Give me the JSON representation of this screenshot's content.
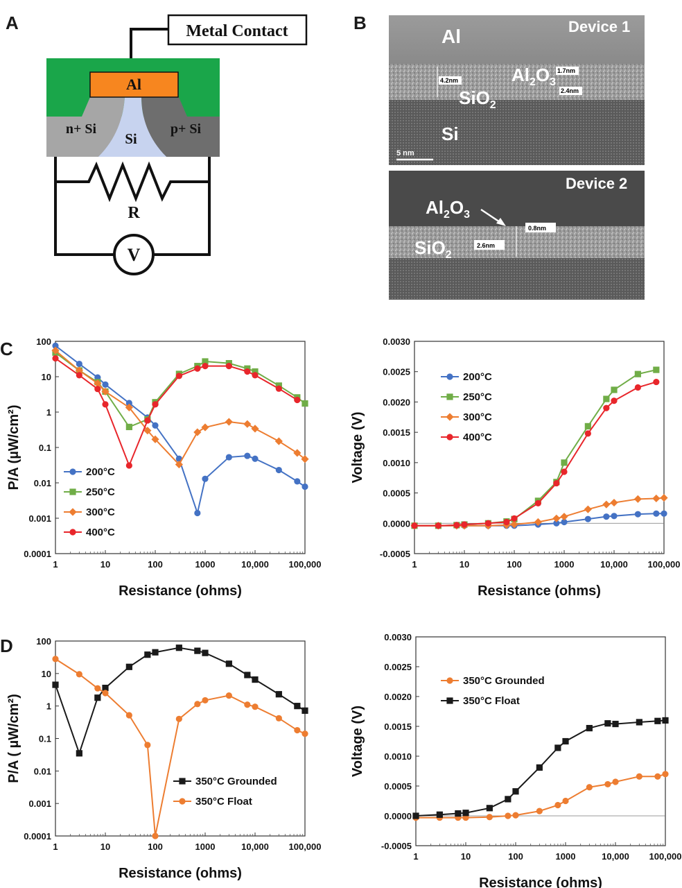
{
  "panels": {
    "a": "A",
    "b": "B",
    "c": "C",
    "d": "D"
  },
  "schematic": {
    "metal_contact": "Metal Contact",
    "al": "Al",
    "n_si": "n+ Si",
    "si": "Si",
    "p_si": "p+ Si",
    "r": "R",
    "v": "V",
    "colors": {
      "oxide": "#1aa64a",
      "al": "#f7861f",
      "n_si": "#a6a6a6",
      "p_si": "#6e6e6e",
      "si": "#c7d3ef"
    }
  },
  "tem": {
    "device1": {
      "title": "Device 1",
      "al": "Al",
      "al2o3": "Al",
      "al2o3_sub": "2",
      "al2o3_o": "O",
      "al2o3_osub": "3",
      "sio2": "SiO",
      "sio2_sub": "2",
      "si": "Si",
      "dim_42": "4.2nm",
      "dim_17": "1.7nm",
      "dim_24": "2.4nm",
      "scale": "5 nm"
    },
    "device2": {
      "title": "Device 2",
      "al2o3": "Al",
      "al2o3_sub": "2",
      "al2o3_o": "O",
      "al2o3_osub": "3",
      "sio2": "SiO",
      "sio2_sub": "2",
      "dim_08": "0.8nm",
      "dim_26": "2.6nm"
    }
  },
  "chart_data": [
    {
      "panel": "C-left",
      "type": "line",
      "xscale": "log",
      "yscale": "log",
      "xlim": [
        1,
        100000
      ],
      "ylim": [
        0.0001,
        100
      ],
      "xlabel": "Resistance (ohms)",
      "ylabel": "P/A (µW/cm²)",
      "xticks": [
        "1",
        "10",
        "100",
        "1000",
        "10,000",
        "100,000"
      ],
      "yticks": [
        "0.0001",
        "0.001",
        "0.01",
        "0.1",
        "1",
        "10",
        "100"
      ],
      "legend_position": "lower-left",
      "series": [
        {
          "name": "200°C",
          "color": "#4472c4",
          "marker": "circle",
          "points": [
            [
              1,
              75
            ],
            [
              3,
              23
            ],
            [
              7,
              9.5
            ],
            [
              10,
              6
            ],
            [
              30,
              1.8
            ],
            [
              70,
              0.7
            ],
            [
              100,
              0.42
            ],
            [
              300,
              0.048
            ],
            [
              700,
              0.0014
            ],
            [
              1000,
              0.013
            ],
            [
              3000,
              0.053
            ],
            [
              7000,
              0.058
            ],
            [
              10000,
              0.048
            ],
            [
              30000,
              0.023
            ],
            [
              70000,
              0.011
            ],
            [
              100000,
              0.0078
            ]
          ]
        },
        {
          "name": "250°C",
          "color": "#70ad47",
          "marker": "square",
          "points": [
            [
              1,
              48
            ],
            [
              3,
              15
            ],
            [
              7,
              7
            ],
            [
              10,
              3.8
            ],
            [
              30,
              0.38
            ],
            [
              70,
              0.62
            ],
            [
              100,
              1.9
            ],
            [
              300,
              12
            ],
            [
              700,
              20
            ],
            [
              1000,
              27
            ],
            [
              3000,
              24
            ],
            [
              7000,
              17
            ],
            [
              10000,
              14
            ],
            [
              30000,
              5.6
            ],
            [
              70000,
              2.6
            ],
            [
              100000,
              1.75
            ]
          ]
        },
        {
          "name": "300°C",
          "color": "#ed7d31",
          "marker": "diamond",
          "points": [
            [
              1,
              55
            ],
            [
              3,
              15
            ],
            [
              7,
              6.5
            ],
            [
              10,
              3.8
            ],
            [
              30,
              1.35
            ],
            [
              70,
              0.3
            ],
            [
              100,
              0.17
            ],
            [
              300,
              0.033
            ],
            [
              700,
              0.27
            ],
            [
              1000,
              0.37
            ],
            [
              3000,
              0.53
            ],
            [
              7000,
              0.46
            ],
            [
              10000,
              0.34
            ],
            [
              30000,
              0.15
            ],
            [
              70000,
              0.07
            ],
            [
              100000,
              0.047
            ]
          ]
        },
        {
          "name": "400°C",
          "color": "#e8262b",
          "marker": "circle",
          "points": [
            [
              1,
              33
            ],
            [
              3,
              11
            ],
            [
              7,
              4.5
            ],
            [
              10,
              1.65
            ],
            [
              30,
              0.031
            ],
            [
              70,
              0.58
            ],
            [
              100,
              1.65
            ],
            [
              300,
              10.5
            ],
            [
              700,
              17
            ],
            [
              1000,
              20
            ],
            [
              3000,
              20
            ],
            [
              7000,
              14
            ],
            [
              10000,
              11
            ],
            [
              30000,
              4.6
            ],
            [
              70000,
              2.2
            ]
          ]
        }
      ]
    },
    {
      "panel": "C-right",
      "type": "line",
      "xscale": "log",
      "yscale": "linear",
      "xlim": [
        1,
        100000
      ],
      "ylim": [
        -0.0005,
        0.003
      ],
      "xlabel": "Resistance (ohms)",
      "ylabel": "Voltage (V)",
      "xticks": [
        "1",
        "10",
        "100",
        "1000",
        "10,000",
        "100,000"
      ],
      "yticks": [
        "-0.0005",
        "0.0000",
        "0.0005",
        "0.0010",
        "0.0015",
        "0.0020",
        "0.0025",
        "0.0030"
      ],
      "legend_position": "upper-left",
      "series": [
        {
          "name": "200°C",
          "color": "#4472c4",
          "marker": "circle",
          "points": [
            [
              1,
              -4e-05
            ],
            [
              3,
              -4e-05
            ],
            [
              7,
              -4e-05
            ],
            [
              10,
              -4e-05
            ],
            [
              30,
              -4e-05
            ],
            [
              70,
              -4e-05
            ],
            [
              100,
              -4e-05
            ],
            [
              300,
              -2e-05
            ],
            [
              700,
              0
            ],
            [
              1000,
              2e-05
            ],
            [
              3000,
              7e-05
            ],
            [
              7000,
              0.00011
            ],
            [
              10000,
              0.00012
            ],
            [
              30000,
              0.00015
            ],
            [
              70000,
              0.00016
            ],
            [
              100000,
              0.00016
            ]
          ]
        },
        {
          "name": "250°C",
          "color": "#70ad47",
          "marker": "square",
          "points": [
            [
              1,
              -4e-05
            ],
            [
              3,
              -4e-05
            ],
            [
              7,
              -3e-05
            ],
            [
              10,
              -2e-05
            ],
            [
              30,
              0
            ],
            [
              70,
              3e-05
            ],
            [
              100,
              7e-05
            ],
            [
              300,
              0.00037
            ],
            [
              700,
              0.00068
            ],
            [
              1000,
              0.001
            ],
            [
              3000,
              0.0016
            ],
            [
              7000,
              0.00205
            ],
            [
              10000,
              0.0022
            ],
            [
              30000,
              0.00246
            ],
            [
              70000,
              0.00253
            ]
          ]
        },
        {
          "name": "300°C",
          "color": "#ed7d31",
          "marker": "diamond",
          "points": [
            [
              1,
              -4e-05
            ],
            [
              3,
              -4e-05
            ],
            [
              7,
              -4e-05
            ],
            [
              10,
              -4e-05
            ],
            [
              30,
              -4e-05
            ],
            [
              70,
              -3e-05
            ],
            [
              100,
              -2e-05
            ],
            [
              300,
              2e-05
            ],
            [
              700,
              8e-05
            ],
            [
              1000,
              0.00011
            ],
            [
              3000,
              0.00023
            ],
            [
              7000,
              0.00031
            ],
            [
              10000,
              0.00034
            ],
            [
              30000,
              0.0004
            ],
            [
              70000,
              0.00041
            ],
            [
              100000,
              0.00042
            ]
          ]
        },
        {
          "name": "400°C",
          "color": "#e8262b",
          "marker": "circle",
          "points": [
            [
              1,
              -4e-05
            ],
            [
              3,
              -4e-05
            ],
            [
              7,
              -3e-05
            ],
            [
              10,
              -2e-05
            ],
            [
              30,
              0
            ],
            [
              70,
              2e-05
            ],
            [
              100,
              8e-05
            ],
            [
              300,
              0.00033
            ],
            [
              700,
              0.00066
            ],
            [
              1000,
              0.00085
            ],
            [
              3000,
              0.00148
            ],
            [
              7000,
              0.0019
            ],
            [
              10000,
              0.00202
            ],
            [
              30000,
              0.00224
            ],
            [
              70000,
              0.00233
            ]
          ]
        }
      ]
    },
    {
      "panel": "D-left",
      "type": "line",
      "xscale": "log",
      "yscale": "log",
      "xlim": [
        1,
        100000
      ],
      "ylim": [
        0.0001,
        100
      ],
      "xlabel": "Resistance (ohms)",
      "ylabel": "P/A ( µW/cm²)",
      "xticks": [
        "1",
        "10",
        "100",
        "1000",
        "10,000",
        "100,000"
      ],
      "yticks": [
        "0.0001",
        "0.001",
        "0.01",
        "0.1",
        "1",
        "10",
        "100"
      ],
      "legend_position": "lower-right",
      "series": [
        {
          "name": "350°C Grounded",
          "color": "#1a1a1a",
          "marker": "square",
          "points": [
            [
              1,
              4.5
            ],
            [
              3,
              0.035
            ],
            [
              7,
              1.8
            ],
            [
              10,
              3.6
            ],
            [
              30,
              16
            ],
            [
              70,
              38
            ],
            [
              100,
              45
            ],
            [
              300,
              62
            ],
            [
              700,
              50
            ],
            [
              1000,
              43
            ],
            [
              3000,
              20
            ],
            [
              7000,
              9
            ],
            [
              10000,
              6.5
            ],
            [
              30000,
              2.3
            ],
            [
              70000,
              1
            ],
            [
              100000,
              0.72
            ]
          ]
        },
        {
          "name": "350°C Float",
          "color": "#ed7d31",
          "marker": "circle",
          "points": [
            [
              1,
              28
            ],
            [
              3,
              9.5
            ],
            [
              7,
              3.5
            ],
            [
              10,
              2.5
            ],
            [
              30,
              0.52
            ],
            [
              70,
              0.063
            ],
            [
              100,
              0.0001
            ],
            [
              300,
              0.4
            ],
            [
              700,
              1.15
            ],
            [
              1000,
              1.5
            ],
            [
              3000,
              2.1
            ],
            [
              7000,
              1.1
            ],
            [
              10000,
              0.95
            ],
            [
              30000,
              0.42
            ],
            [
              70000,
              0.18
            ],
            [
              100000,
              0.14
            ]
          ]
        }
      ]
    },
    {
      "panel": "D-right",
      "type": "line",
      "xscale": "log",
      "yscale": "linear",
      "xlim": [
        1,
        100000
      ],
      "ylim": [
        -0.0005,
        0.003
      ],
      "xlabel": "Resistance (ohms)",
      "ylabel": "Voltage (V)",
      "xticks": [
        "1",
        "10",
        "100",
        "1000",
        "10,000",
        "100,000"
      ],
      "yticks": [
        "-0.0005",
        "0.0000",
        "0.0005",
        "0.0010",
        "0.0015",
        "0.0020",
        "0.0025",
        "0.0030"
      ],
      "legend_position": "upper-left",
      "series": [
        {
          "name": "350°C Grounded",
          "color": "#ed7d31",
          "marker": "circle",
          "points": [
            [
              1,
              -3e-05
            ],
            [
              3,
              -3e-05
            ],
            [
              7,
              -3e-05
            ],
            [
              10,
              -3e-05
            ],
            [
              30,
              -2e-05
            ],
            [
              70,
              0
            ],
            [
              100,
              1e-05
            ],
            [
              300,
              8e-05
            ],
            [
              700,
              0.00018
            ],
            [
              1000,
              0.00025
            ],
            [
              3000,
              0.00048
            ],
            [
              7000,
              0.00053
            ],
            [
              10000,
              0.00057
            ],
            [
              30000,
              0.00066
            ],
            [
              70000,
              0.00066
            ],
            [
              100000,
              0.0007
            ]
          ]
        },
        {
          "name": "350°C Float",
          "color": "#1a1a1a",
          "marker": "square",
          "points": [
            [
              1,
              0
            ],
            [
              3,
              2e-05
            ],
            [
              7,
              4e-05
            ],
            [
              10,
              5e-05
            ],
            [
              30,
              0.00013
            ],
            [
              70,
              0.00028
            ],
            [
              100,
              0.00041
            ],
            [
              300,
              0.00081
            ],
            [
              700,
              0.00114
            ],
            [
              1000,
              0.00125
            ],
            [
              3000,
              0.00147
            ],
            [
              7000,
              0.00155
            ],
            [
              10000,
              0.00154
            ],
            [
              30000,
              0.00157
            ],
            [
              70000,
              0.00159
            ],
            [
              100000,
              0.0016
            ]
          ]
        }
      ]
    }
  ]
}
